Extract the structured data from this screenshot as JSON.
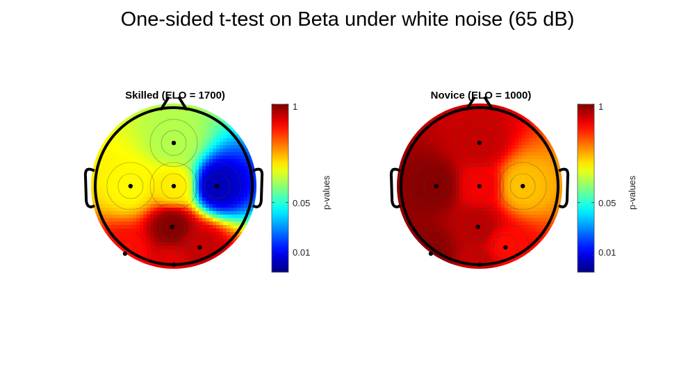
{
  "figure": {
    "title": "One-sided t-test on Beta under white noise (65 dB)"
  },
  "colors": {
    "head_outline": "#000000",
    "contour_line": "#3a3a3a",
    "electrode": "#000000"
  },
  "chart_data": [
    {
      "type": "heatmap",
      "title": "Skilled (ELO = 1700)",
      "colorbar": {
        "label": "p-values",
        "scale": "log",
        "range": [
          0.006,
          1
        ],
        "ticks": [
          {
            "value": 1,
            "label": "1"
          },
          {
            "value": 0.05,
            "label": "0.05"
          },
          {
            "value": 0.01,
            "label": "0.01"
          }
        ],
        "colormap": "jet"
      },
      "electrodes": [
        {
          "x": 0,
          "y": 0.55,
          "p": 0.1
        },
        {
          "x": -0.55,
          "y": 0.0,
          "p": 0.15
        },
        {
          "x": 0.0,
          "y": 0.0,
          "p": 0.16
        },
        {
          "x": 0.55,
          "y": 0.0,
          "p": 0.008
        },
        {
          "x": -0.62,
          "y": -0.86,
          "p": 0.5
        },
        {
          "x": 0.0,
          "y": -1.0,
          "p": 0.6
        },
        {
          "x": 0.33,
          "y": -0.78,
          "p": 0.7
        },
        {
          "x": -0.02,
          "y": -0.52,
          "p": 0.98
        }
      ]
    },
    {
      "type": "heatmap",
      "title": "Novice (ELO = 1000)",
      "colorbar": {
        "label": "p-values",
        "scale": "log",
        "range": [
          0.006,
          1
        ],
        "ticks": [
          {
            "value": 1,
            "label": "1"
          },
          {
            "value": 0.05,
            "label": "0.05"
          },
          {
            "value": 0.01,
            "label": "0.01"
          }
        ],
        "colormap": "jet"
      },
      "electrodes": [
        {
          "x": 0,
          "y": 0.55,
          "p": 0.7
        },
        {
          "x": -0.55,
          "y": 0.0,
          "p": 0.97
        },
        {
          "x": 0.0,
          "y": 0.0,
          "p": 0.55
        },
        {
          "x": 0.55,
          "y": 0.0,
          "p": 0.2
        },
        {
          "x": -0.62,
          "y": -0.86,
          "p": 0.95
        },
        {
          "x": 0.0,
          "y": -1.0,
          "p": 0.7
        },
        {
          "x": 0.33,
          "y": -0.78,
          "p": 0.5
        },
        {
          "x": -0.02,
          "y": -0.52,
          "p": 0.75
        }
      ]
    }
  ]
}
